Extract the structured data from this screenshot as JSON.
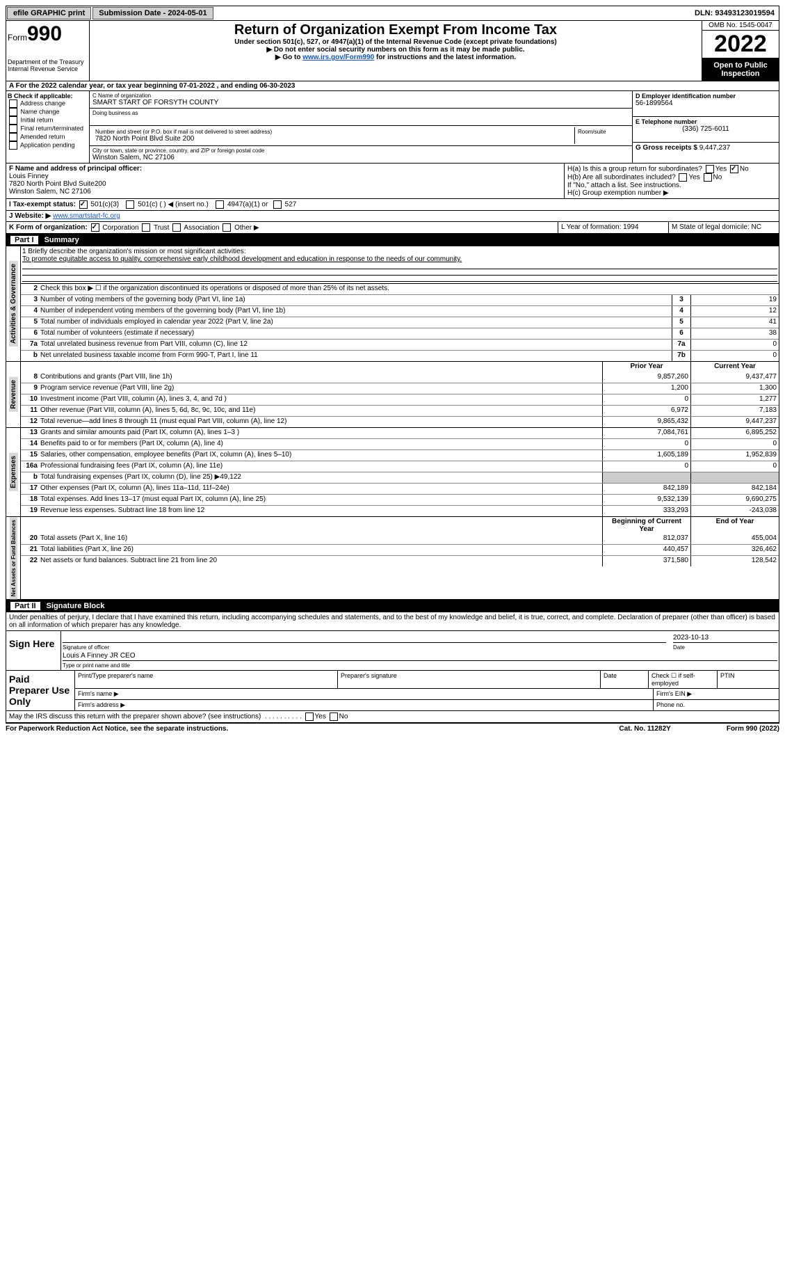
{
  "top": {
    "efile": "efile GRAPHIC print",
    "submission": "Submission Date - 2024-05-01",
    "dln": "DLN: 93493123019594"
  },
  "header": {
    "form": "Form",
    "form_no": "990",
    "dept": "Department of the Treasury",
    "irs": "Internal Revenue Service",
    "title": "Return of Organization Exempt From Income Tax",
    "subtitle": "Under section 501(c), 527, or 4947(a)(1) of the Internal Revenue Code (except private foundations)",
    "instr1": "▶ Do not enter social security numbers on this form as it may be made public.",
    "instr2_pre": "▶ Go to ",
    "instr2_link": "www.irs.gov/Form990",
    "instr2_post": " for instructions and the latest information.",
    "omb": "OMB No. 1545-0047",
    "year": "2022",
    "open": "Open to Public Inspection"
  },
  "row_a": "A For the 2022 calendar year, or tax year beginning 07-01-2022   , and ending 06-30-2023",
  "block_b": {
    "b_label": "B Check if applicable:",
    "opts": [
      "Address change",
      "Name change",
      "Initial return",
      "Final return/terminated",
      "Amended return",
      "Application pending"
    ],
    "c_label": "C Name of organization",
    "org_name": "SMART START OF FORSYTH COUNTY",
    "dba": "Doing business as",
    "street_label": "Number and street (or P.O. box if mail is not delivered to street address)",
    "room_label": "Room/suite",
    "street": "7820 North Point Blvd Suite 200",
    "city_label": "City or town, state or province, country, and ZIP or foreign postal code",
    "city": "Winston Salem, NC  27106",
    "d_label": "D Employer identification number",
    "ein": "56-1899564",
    "e_label": "E Telephone number",
    "phone": "(336) 725-6011",
    "g_label": "G Gross receipts $",
    "gross": "9,447,237"
  },
  "fgh": {
    "f_label": "F Name and address of principal officer:",
    "officer": "Louis Finney",
    "officer_addr1": "7820 North Point Blvd Suite200",
    "officer_addr2": "Winston Salem, NC  27106",
    "ha": "H(a)  Is this a group return for subordinates?",
    "hb": "H(b)  Are all subordinates included?",
    "hb_note": "If \"No,\" attach a list. See instructions.",
    "hc": "H(c)  Group exemption number ▶"
  },
  "row_i": {
    "label": "I  Tax-exempt status:",
    "o1": "501(c)(3)",
    "o2": "501(c) (  ) ◀ (insert no.)",
    "o3": "4947(a)(1) or",
    "o4": "527"
  },
  "row_j": {
    "label": "J  Website: ▶",
    "url": "www.smartstart-fc.org"
  },
  "row_k": {
    "k": "K Form of organization:",
    "opts": [
      "Corporation",
      "Trust",
      "Association",
      "Other ▶"
    ],
    "l": "L Year of formation: 1994",
    "m": "M State of legal domicile: NC"
  },
  "part1": {
    "title": "Part I",
    "name": "Summary"
  },
  "mission": {
    "q": "1  Briefly describe the organization's mission or most significant activities:",
    "text": "To promote equitable access to quality, comprehensive early childhood development and education in response to the needs of our community."
  },
  "gov_lines": [
    {
      "n": "2",
      "d": "Check this box ▶ ☐ if the organization discontinued its operations or disposed of more than 25% of its net assets."
    },
    {
      "n": "3",
      "d": "Number of voting members of the governing body (Part VI, line 1a)",
      "box": "3",
      "v": "19"
    },
    {
      "n": "4",
      "d": "Number of independent voting members of the governing body (Part VI, line 1b)",
      "box": "4",
      "v": "12"
    },
    {
      "n": "5",
      "d": "Total number of individuals employed in calendar year 2022 (Part V, line 2a)",
      "box": "5",
      "v": "41"
    },
    {
      "n": "6",
      "d": "Total number of volunteers (estimate if necessary)",
      "box": "6",
      "v": "38"
    },
    {
      "n": "7a",
      "d": "Total unrelated business revenue from Part VIII, column (C), line 12",
      "box": "7a",
      "v": "0"
    },
    {
      "n": "b",
      "d": "Net unrelated business taxable income from Form 990-T, Part I, line 11",
      "box": "7b",
      "v": "0"
    }
  ],
  "rev_head": {
    "py": "Prior Year",
    "cy": "Current Year"
  },
  "rev_lines": [
    {
      "n": "8",
      "d": "Contributions and grants (Part VIII, line 1h)",
      "py": "9,857,260",
      "cy": "9,437,477"
    },
    {
      "n": "9",
      "d": "Program service revenue (Part VIII, line 2g)",
      "py": "1,200",
      "cy": "1,300"
    },
    {
      "n": "10",
      "d": "Investment income (Part VIII, column (A), lines 3, 4, and 7d )",
      "py": "0",
      "cy": "1,277"
    },
    {
      "n": "11",
      "d": "Other revenue (Part VIII, column (A), lines 5, 6d, 8c, 9c, 10c, and 11e)",
      "py": "6,972",
      "cy": "7,183"
    },
    {
      "n": "12",
      "d": "Total revenue—add lines 8 through 11 (must equal Part VIII, column (A), line 12)",
      "py": "9,865,432",
      "cy": "9,447,237"
    }
  ],
  "exp_lines": [
    {
      "n": "13",
      "d": "Grants and similar amounts paid (Part IX, column (A), lines 1–3 )",
      "py": "7,084,761",
      "cy": "6,895,252"
    },
    {
      "n": "14",
      "d": "Benefits paid to or for members (Part IX, column (A), line 4)",
      "py": "0",
      "cy": "0"
    },
    {
      "n": "15",
      "d": "Salaries, other compensation, employee benefits (Part IX, column (A), lines 5–10)",
      "py": "1,605,189",
      "cy": "1,952,839"
    },
    {
      "n": "16a",
      "d": "Professional fundraising fees (Part IX, column (A), line 11e)",
      "py": "0",
      "cy": "0"
    },
    {
      "n": "b",
      "d": "Total fundraising expenses (Part IX, column (D), line 25) ▶49,122",
      "shade": true
    },
    {
      "n": "17",
      "d": "Other expenses (Part IX, column (A), lines 11a–11d, 11f–24e)",
      "py": "842,189",
      "cy": "842,184"
    },
    {
      "n": "18",
      "d": "Total expenses. Add lines 13–17 (must equal Part IX, column (A), line 25)",
      "py": "9,532,139",
      "cy": "9,690,275"
    },
    {
      "n": "19",
      "d": "Revenue less expenses. Subtract line 18 from line 12",
      "py": "333,293",
      "cy": "-243,038"
    }
  ],
  "na_head": {
    "py": "Beginning of Current Year",
    "cy": "End of Year"
  },
  "na_lines": [
    {
      "n": "20",
      "d": "Total assets (Part X, line 16)",
      "py": "812,037",
      "cy": "455,004"
    },
    {
      "n": "21",
      "d": "Total liabilities (Part X, line 26)",
      "py": "440,457",
      "cy": "326,462"
    },
    {
      "n": "22",
      "d": "Net assets or fund balances. Subtract line 21 from line 20",
      "py": "371,580",
      "cy": "128,542"
    }
  ],
  "part2": {
    "title": "Part II",
    "name": "Signature Block"
  },
  "sig": {
    "penalty": "Under penalties of perjury, I declare that I have examined this return, including accompanying schedules and statements, and to the best of my knowledge and belief, it is true, correct, and complete. Declaration of preparer (other than officer) is based on all information of which preparer has any knowledge.",
    "sign_here": "Sign Here",
    "sig_officer": "Signature of officer",
    "date": "Date",
    "date_val": "2023-10-13",
    "name_title": "Louis A Finney JR CEO",
    "type_print": "Type or print name and title",
    "paid": "Paid Preparer Use Only",
    "p_name": "Print/Type preparer's name",
    "p_sig": "Preparer's signature",
    "p_date": "Date",
    "p_check": "Check ☐ if self-employed",
    "ptin": "PTIN",
    "firm_name": "Firm's name   ▶",
    "firm_ein": "Firm's EIN ▶",
    "firm_addr": "Firm's address ▶",
    "phone": "Phone no.",
    "discuss": "May the IRS discuss this return with the preparer shown above? (see instructions)",
    "yes": "Yes",
    "no": "No"
  },
  "footer": {
    "left": "For Paperwork Reduction Act Notice, see the separate instructions.",
    "mid": "Cat. No. 11282Y",
    "right": "Form 990 (2022)"
  }
}
